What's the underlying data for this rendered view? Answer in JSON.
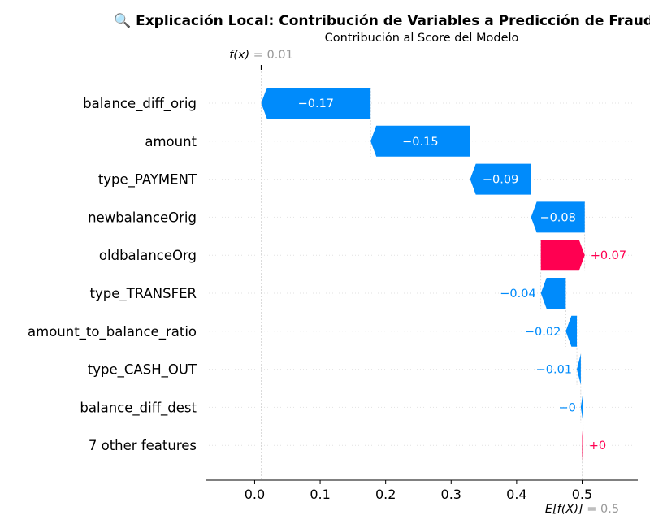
{
  "chart_data": {
    "type": "waterfall",
    "title": "🔍 Explicación Local: Contribución de Variables a Predicción de Fraude",
    "subtitle": "Contribución al Score del Modelo",
    "base_value": 0.5,
    "base_label": "E[f(X)]",
    "base_value_text": "= 0.5",
    "output_value": 0.01,
    "output_label": "f(x)",
    "output_value_text": "= 0.01",
    "xlim": [
      -0.075,
      0.585
    ],
    "x_ticks": [
      0.0,
      0.1,
      0.2,
      0.3,
      0.4,
      0.5
    ],
    "x_tick_labels": [
      "0.0",
      "0.1",
      "0.2",
      "0.3",
      "0.4",
      "0.5"
    ],
    "features": [
      {
        "name": "balance_diff_orig",
        "start": 0.177,
        "end": 0.01,
        "label": "−0.17"
      },
      {
        "name": "amount",
        "start": 0.329,
        "end": 0.177,
        "label": "−0.15"
      },
      {
        "name": "type_PAYMENT",
        "start": 0.422,
        "end": 0.329,
        "label": "−0.09"
      },
      {
        "name": "newbalanceOrig",
        "start": 0.504,
        "end": 0.422,
        "label": "−0.08"
      },
      {
        "name": "oldbalanceOrg",
        "start": 0.437,
        "end": 0.504,
        "label": "+0.07"
      },
      {
        "name": "type_TRANSFER",
        "start": 0.475,
        "end": 0.437,
        "label": "−0.04"
      },
      {
        "name": "amount_to_balance_ratio",
        "start": 0.492,
        "end": 0.475,
        "label": "−0.02"
      },
      {
        "name": "type_CASH_OUT",
        "start": 0.498,
        "end": 0.492,
        "label": "−0.01"
      },
      {
        "name": "balance_diff_dest",
        "start": 0.5015,
        "end": 0.498,
        "label": "−0"
      },
      {
        "name": "7 other features",
        "start": 0.5,
        "end": 0.5015,
        "label": "+0"
      }
    ],
    "colors": {
      "negative": "#008bfb",
      "positive": "#ff0051",
      "grid": "#cccccc",
      "label_gray": "#999999"
    }
  }
}
